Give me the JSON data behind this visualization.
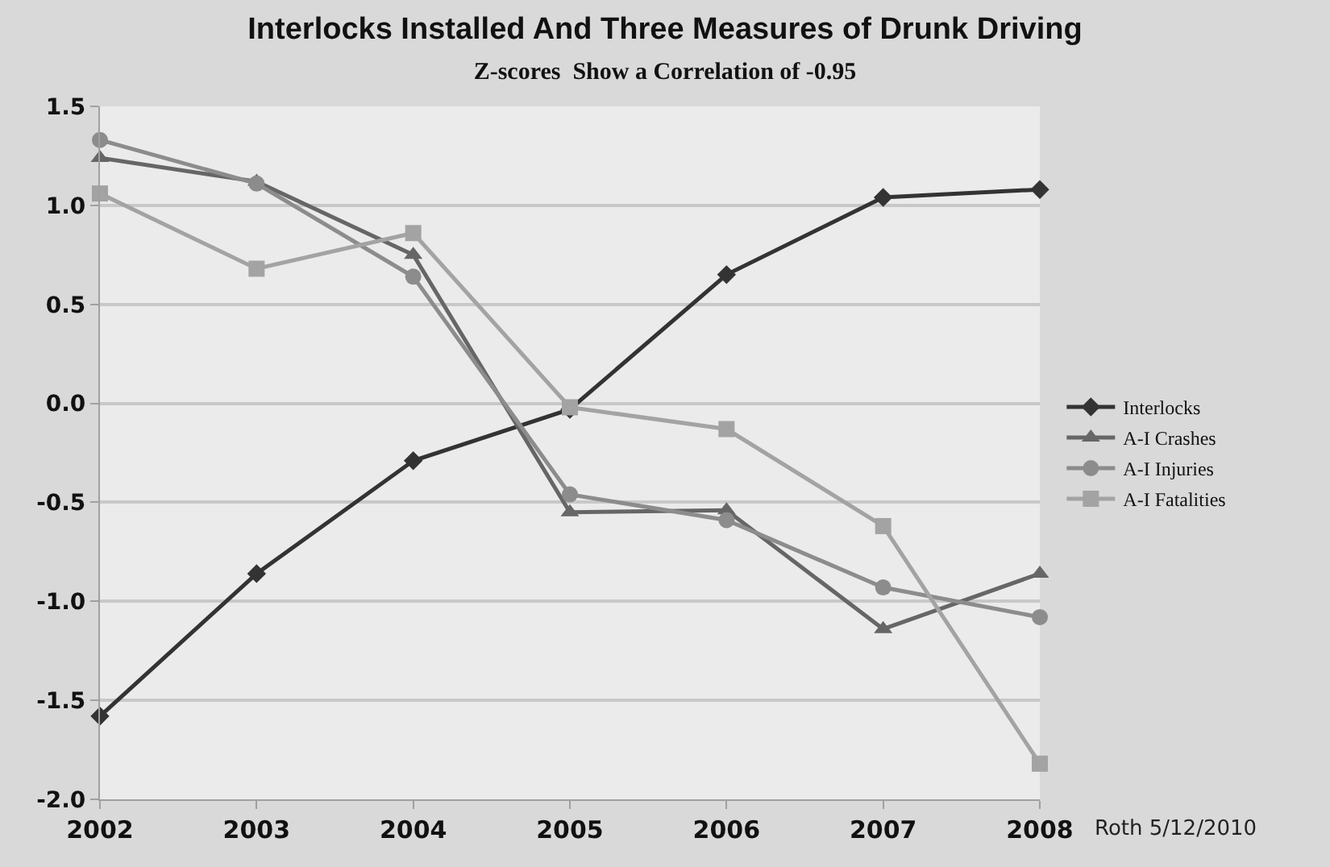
{
  "chart_data": {
    "type": "line",
    "title": "Interlocks Installed And Three Measures of Drunk Driving",
    "subtitle": "Z-scores  Show a Correlation of -0.95",
    "categories": [
      "2002",
      "2003",
      "2004",
      "2005",
      "2006",
      "2007",
      "2008"
    ],
    "series": [
      {
        "name": "Interlocks",
        "color": "#333333",
        "marker": "diamond",
        "values": [
          -1.58,
          -0.86,
          -0.29,
          -0.03,
          0.65,
          1.04,
          1.08
        ]
      },
      {
        "name": "A-I Crashes",
        "color": "#666666",
        "marker": "triangle",
        "values": [
          1.24,
          1.12,
          0.75,
          -0.55,
          -0.54,
          -1.14,
          -0.86
        ]
      },
      {
        "name": "A-I Injuries",
        "color": "#8c8c8c",
        "marker": "circle",
        "values": [
          1.33,
          1.11,
          0.64,
          -0.46,
          -0.59,
          -0.93,
          -1.08
        ]
      },
      {
        "name": "A-I Fatalities",
        "color": "#a3a3a3",
        "marker": "square",
        "values": [
          1.06,
          0.68,
          0.86,
          -0.02,
          -0.13,
          -0.62,
          -1.82
        ]
      }
    ],
    "ylim": [
      -2.0,
      1.5
    ],
    "yticks": [
      {
        "value": -2,
        "label": "-2.0"
      },
      {
        "value": -1.5,
        "label": "-1.5"
      },
      {
        "value": -1,
        "label": "-1.0"
      },
      {
        "value": -0.5,
        "label": "-0.5"
      },
      {
        "value": 0,
        "label": "0.0"
      },
      {
        "value": 0.5,
        "label": "0.5"
      },
      {
        "value": 1,
        "label": "1.0"
      },
      {
        "value": 1.5,
        "label": "1.5"
      }
    ],
    "grid": "y",
    "legend": "right",
    "line_style": "solid",
    "annotations": [
      "Roth 5/12/2010"
    ]
  }
}
